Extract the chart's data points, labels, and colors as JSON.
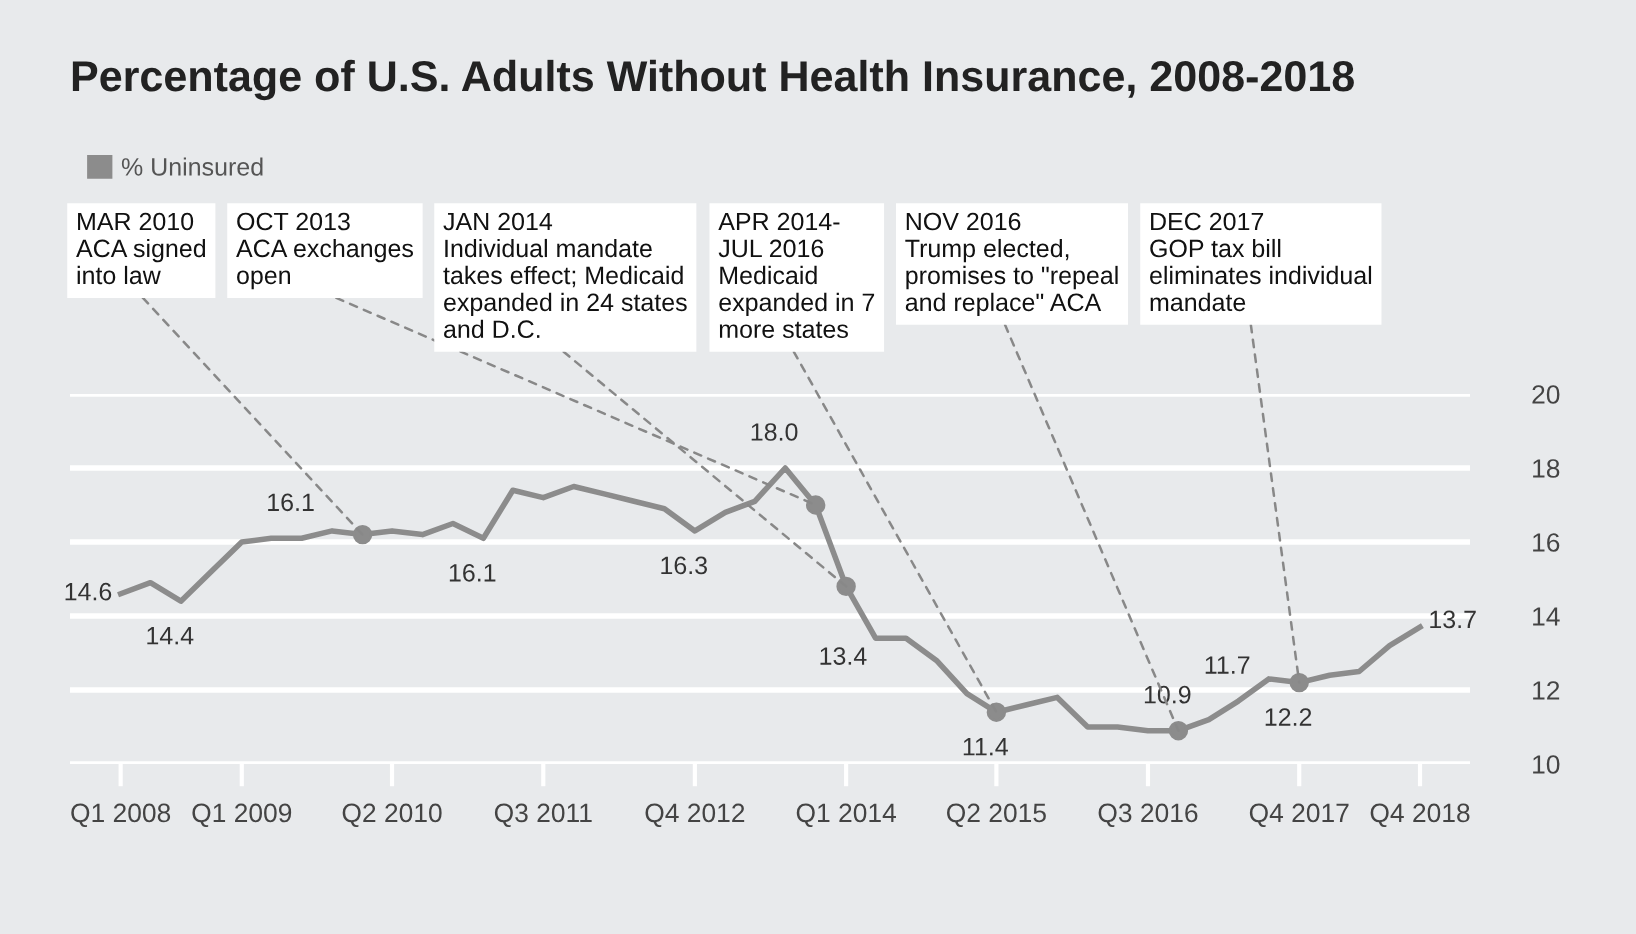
{
  "chart_data": {
    "type": "line",
    "title": "Percentage of U.S. Adults Without Health Insurance, 2008-2018",
    "x": [
      "2008-02-15",
      "2008-05-15",
      "2008-08-15",
      "2008-11-15",
      "2009-02-15",
      "2009-05-15",
      "2009-08-15",
      "2009-11-15",
      "2010-02-15",
      "2010-05-15",
      "2010-08-15",
      "2010-11-15",
      "2011-02-15",
      "2011-05-15",
      "2011-08-15",
      "2011-11-15",
      "2012-02-15",
      "2012-05-15",
      "2012-08-15",
      "2012-11-15",
      "2013-02-15",
      "2013-05-15",
      "2013-08-15",
      "2013-11-15",
      "2014-02-15",
      "2014-05-15",
      "2014-08-15",
      "2014-11-15",
      "2015-02-15",
      "2015-05-15",
      "2015-08-15",
      "2015-11-15",
      "2016-02-15",
      "2016-05-15",
      "2016-08-15",
      "2016-11-15",
      "2017-02-15",
      "2017-05-15",
      "2017-08-15",
      "2017-11-15",
      "2018-02-15",
      "2018-05-15",
      "2018-08-15",
      "2018-11-15"
    ],
    "series": [
      {
        "name": "% Uninsured",
        "color": "#8c8c8c",
        "values": [
          14.6,
          14.9,
          14.4,
          15.2,
          16.0,
          16.1,
          16.1,
          16.3,
          16.2,
          16.3,
          16.2,
          16.5,
          16.1,
          17.4,
          17.2,
          17.5,
          17.3,
          17.1,
          16.9,
          16.3,
          16.8,
          17.1,
          18.0,
          17.0,
          14.8,
          13.4,
          13.4,
          12.8,
          11.9,
          11.4,
          11.6,
          11.8,
          11.0,
          11.0,
          10.9,
          10.9,
          11.2,
          11.7,
          12.3,
          12.2,
          12.4,
          12.5,
          13.2,
          13.7
        ],
        "value_labels": [
          "14.6",
          null,
          "14.4",
          null,
          null,
          null,
          "16.1",
          null,
          null,
          null,
          null,
          null,
          "16.1",
          null,
          null,
          null,
          null,
          null,
          null,
          "16.3",
          null,
          null,
          "18.0",
          null,
          null,
          "13.4",
          null,
          null,
          null,
          "11.4",
          null,
          null,
          null,
          null,
          null,
          "10.9",
          null,
          "11.7",
          null,
          "12.2",
          null,
          null,
          null,
          "13.7"
        ]
      }
    ],
    "xlim": [
      "2007-09-15",
      "2019-04-15"
    ],
    "xticks": [
      {
        "value": "2008-02-15",
        "label": "Q1 2008"
      },
      {
        "value": "2009-02-15",
        "label": "Q1 2009"
      },
      {
        "value": "2010-05-15",
        "label": "Q2 2010"
      },
      {
        "value": "2011-08-15",
        "label": "Q3 2011"
      },
      {
        "value": "2012-11-15",
        "label": "Q4 2012"
      },
      {
        "value": "2014-02-15",
        "label": "Q1 2014"
      },
      {
        "value": "2015-05-15",
        "label": "Q2 2015"
      },
      {
        "value": "2016-08-15",
        "label": "Q3 2016"
      },
      {
        "value": "2017-11-15",
        "label": "Q4 2017"
      },
      {
        "value": "2018-11-15",
        "label": "Q4 2018"
      }
    ],
    "ylim": [
      10,
      20
    ],
    "yticks": [
      10,
      12,
      14,
      16,
      18,
      20
    ],
    "grid": "y",
    "legend": "top left",
    "marker": "none",
    "line_style": "solid",
    "annotations": [
      {
        "text": "MAR 2010\nACA signed\ninto law",
        "x": "2010-02-15",
        "y": 16.2
      },
      {
        "text": "OCT 2013\nACA exchanges\nopen",
        "x": "2013-11-15",
        "y": 17.0
      },
      {
        "text": "JAN 2014\nIndividual mandate\ntakes effect; Medicaid\nexpanded in 24 states\nand D.C.",
        "x": "2014-02-15",
        "y": 14.8
      },
      {
        "text": "APR 2014-\nJUL 2016\nMedicaid\nexpanded in 7\nmore states",
        "x": "2015-05-15",
        "y": 11.4
      },
      {
        "text": "NOV 2016\nTrump elected,\npromises to \"repeal\nand replace\" ACA",
        "x": "2016-11-15",
        "y": 10.9
      },
      {
        "text": "DEC 2017\nGOP tax bill\neliminates individual\nmandate",
        "x": "2017-11-15",
        "y": 12.2
      }
    ]
  }
}
